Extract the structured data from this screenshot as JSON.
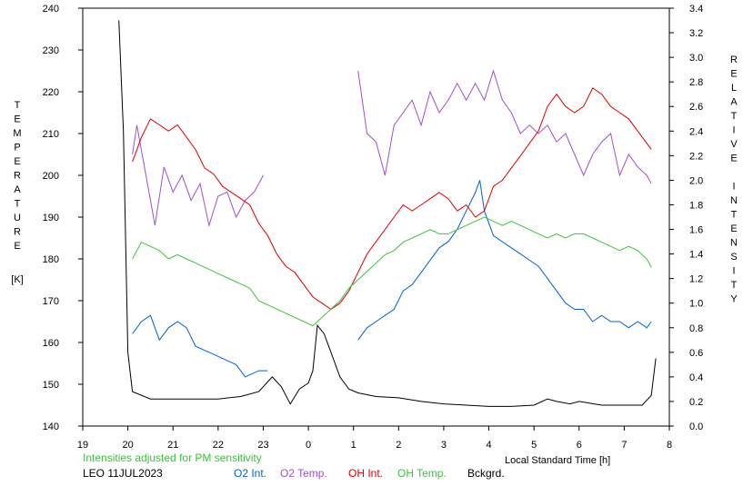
{
  "chart_data": {
    "type": "line",
    "left_axis_title": "TEMPERATURE",
    "left_axis_unit": "[K]",
    "right_axis_title": "RELATIVE INTENSITY",
    "xlabel": "Local Standard Time [h]",
    "x_ticks": [
      "19",
      "20",
      "21",
      "22",
      "23",
      "0",
      "1",
      "2",
      "3",
      "4",
      "5",
      "6",
      "7",
      "8"
    ],
    "xlim": [
      19,
      32
    ],
    "y_left_lim": [
      140,
      240
    ],
    "y_left_ticks": [
      140,
      150,
      160,
      170,
      180,
      190,
      200,
      210,
      220,
      230,
      240
    ],
    "y_right_lim": [
      0.0,
      3.4
    ],
    "y_right_ticks": [
      "0.0",
      "0.2",
      "0.4",
      "0.6",
      "0.8",
      "1.0",
      "1.2",
      "1.4",
      "1.6",
      "1.8",
      "2.0",
      "2.2",
      "2.4",
      "2.6",
      "2.8",
      "3.0",
      "3.2",
      "3.4"
    ],
    "note": "Intensities adjusted for PM sensitivity",
    "station_date": "LEO 11JUL2023",
    "grid": false,
    "series": [
      {
        "name": "O2 Int.",
        "color": "#0060d0",
        "axis": "right",
        "points": [
          [
            20.1,
            0.75
          ],
          [
            20.3,
            0.85
          ],
          [
            20.5,
            0.9
          ],
          [
            20.7,
            0.7
          ],
          [
            20.9,
            0.8
          ],
          [
            21.1,
            0.85
          ],
          [
            21.3,
            0.8
          ],
          [
            21.5,
            0.65
          ],
          [
            21.8,
            0.6
          ],
          [
            22.1,
            0.55
          ],
          [
            22.4,
            0.5
          ],
          [
            22.6,
            0.4
          ],
          [
            22.9,
            0.45
          ],
          [
            23.1,
            0.45
          ],
          [
            24.2,
            null
          ],
          [
            25.1,
            0.7
          ],
          [
            25.3,
            0.8
          ],
          [
            25.5,
            0.85
          ],
          [
            25.7,
            0.9
          ],
          [
            25.9,
            0.95
          ],
          [
            26.1,
            1.1
          ],
          [
            26.3,
            1.15
          ],
          [
            26.5,
            1.25
          ],
          [
            26.7,
            1.35
          ],
          [
            26.9,
            1.45
          ],
          [
            27.1,
            1.5
          ],
          [
            27.3,
            1.6
          ],
          [
            27.5,
            1.75
          ],
          [
            27.7,
            1.9
          ],
          [
            27.8,
            2.0
          ],
          [
            27.9,
            1.75
          ],
          [
            28.1,
            1.55
          ],
          [
            28.3,
            1.5
          ],
          [
            28.5,
            1.45
          ],
          [
            28.7,
            1.4
          ],
          [
            28.9,
            1.35
          ],
          [
            29.1,
            1.3
          ],
          [
            29.3,
            1.2
          ],
          [
            29.5,
            1.1
          ],
          [
            29.7,
            1.0
          ],
          [
            29.9,
            0.95
          ],
          [
            30.1,
            0.95
          ],
          [
            30.3,
            0.85
          ],
          [
            30.5,
            0.9
          ],
          [
            30.7,
            0.85
          ],
          [
            30.9,
            0.85
          ],
          [
            31.1,
            0.8
          ],
          [
            31.3,
            0.85
          ],
          [
            31.5,
            0.8
          ],
          [
            31.6,
            0.85
          ]
        ]
      },
      {
        "name": "O2 Temp.",
        "color": "#a050d0",
        "axis": "left",
        "points": [
          [
            20.1,
            205
          ],
          [
            20.2,
            212
          ],
          [
            20.4,
            200
          ],
          [
            20.6,
            188
          ],
          [
            20.8,
            202
          ],
          [
            21.0,
            196
          ],
          [
            21.2,
            200
          ],
          [
            21.4,
            194
          ],
          [
            21.6,
            198
          ],
          [
            21.8,
            188
          ],
          [
            22.0,
            195
          ],
          [
            22.2,
            196
          ],
          [
            22.4,
            190
          ],
          [
            22.6,
            194
          ],
          [
            22.8,
            196
          ],
          [
            23.0,
            200
          ],
          [
            24.2,
            null
          ],
          [
            25.1,
            225
          ],
          [
            25.3,
            210
          ],
          [
            25.5,
            208
          ],
          [
            25.7,
            200
          ],
          [
            25.9,
            212
          ],
          [
            26.1,
            215
          ],
          [
            26.3,
            218
          ],
          [
            26.5,
            212
          ],
          [
            26.7,
            220
          ],
          [
            26.9,
            215
          ],
          [
            27.1,
            218
          ],
          [
            27.3,
            222
          ],
          [
            27.5,
            218
          ],
          [
            27.7,
            222
          ],
          [
            27.9,
            218
          ],
          [
            28.1,
            225
          ],
          [
            28.3,
            218
          ],
          [
            28.5,
            215
          ],
          [
            28.7,
            210
          ],
          [
            28.9,
            212
          ],
          [
            29.1,
            210
          ],
          [
            29.3,
            212
          ],
          [
            29.5,
            208
          ],
          [
            29.7,
            210
          ],
          [
            29.9,
            205
          ],
          [
            30.1,
            200
          ],
          [
            30.3,
            205
          ],
          [
            30.5,
            208
          ],
          [
            30.7,
            210
          ],
          [
            30.9,
            200
          ],
          [
            31.1,
            205
          ],
          [
            31.3,
            202
          ],
          [
            31.5,
            200
          ],
          [
            31.6,
            198
          ]
        ]
      },
      {
        "name": "OH Int.",
        "color": "#e00000",
        "axis": "right",
        "points": [
          [
            20.1,
            2.15
          ],
          [
            20.3,
            2.35
          ],
          [
            20.5,
            2.5
          ],
          [
            20.7,
            2.45
          ],
          [
            20.9,
            2.4
          ],
          [
            21.1,
            2.45
          ],
          [
            21.3,
            2.35
          ],
          [
            21.5,
            2.25
          ],
          [
            21.7,
            2.1
          ],
          [
            21.9,
            2.05
          ],
          [
            22.1,
            1.95
          ],
          [
            22.3,
            1.9
          ],
          [
            22.5,
            1.85
          ],
          [
            22.7,
            1.8
          ],
          [
            22.9,
            1.65
          ],
          [
            23.1,
            1.55
          ],
          [
            23.3,
            1.4
          ],
          [
            23.5,
            1.3
          ],
          [
            23.7,
            1.25
          ],
          [
            23.9,
            1.15
          ],
          [
            24.1,
            1.05
          ],
          [
            24.3,
            1.0
          ],
          [
            24.5,
            0.95
          ],
          [
            24.7,
            1.0
          ],
          [
            24.9,
            1.1
          ],
          [
            25.1,
            1.25
          ],
          [
            25.3,
            1.4
          ],
          [
            25.5,
            1.5
          ],
          [
            25.7,
            1.6
          ],
          [
            25.9,
            1.7
          ],
          [
            26.1,
            1.8
          ],
          [
            26.3,
            1.75
          ],
          [
            26.5,
            1.8
          ],
          [
            26.7,
            1.85
          ],
          [
            26.9,
            1.9
          ],
          [
            27.1,
            1.85
          ],
          [
            27.3,
            1.75
          ],
          [
            27.5,
            1.8
          ],
          [
            27.7,
            1.7
          ],
          [
            27.9,
            1.75
          ],
          [
            28.1,
            1.95
          ],
          [
            28.3,
            2.0
          ],
          [
            28.5,
            2.1
          ],
          [
            28.7,
            2.2
          ],
          [
            28.9,
            2.3
          ],
          [
            29.1,
            2.4
          ],
          [
            29.3,
            2.6
          ],
          [
            29.5,
            2.7
          ],
          [
            29.7,
            2.6
          ],
          [
            29.9,
            2.55
          ],
          [
            30.1,
            2.6
          ],
          [
            30.3,
            2.75
          ],
          [
            30.5,
            2.7
          ],
          [
            30.7,
            2.6
          ],
          [
            30.9,
            2.55
          ],
          [
            31.1,
            2.5
          ],
          [
            31.3,
            2.4
          ],
          [
            31.5,
            2.3
          ],
          [
            31.6,
            2.25
          ]
        ]
      },
      {
        "name": "OH Temp.",
        "color": "#40c040",
        "axis": "left",
        "points": [
          [
            20.1,
            180
          ],
          [
            20.3,
            184
          ],
          [
            20.5,
            183
          ],
          [
            20.7,
            182
          ],
          [
            20.9,
            180
          ],
          [
            21.1,
            181
          ],
          [
            21.3,
            180
          ],
          [
            21.5,
            179
          ],
          [
            21.7,
            178
          ],
          [
            21.9,
            177
          ],
          [
            22.1,
            176
          ],
          [
            22.3,
            175
          ],
          [
            22.5,
            174
          ],
          [
            22.7,
            173
          ],
          [
            22.9,
            170
          ],
          [
            23.1,
            169
          ],
          [
            23.3,
            168
          ],
          [
            23.5,
            167
          ],
          [
            23.7,
            166
          ],
          [
            23.9,
            165
          ],
          [
            24.1,
            164
          ],
          [
            24.3,
            166
          ],
          [
            24.5,
            168
          ],
          [
            24.7,
            170
          ],
          [
            24.9,
            173
          ],
          [
            25.1,
            175
          ],
          [
            25.3,
            177
          ],
          [
            25.5,
            179
          ],
          [
            25.7,
            181
          ],
          [
            25.9,
            182
          ],
          [
            26.1,
            184
          ],
          [
            26.3,
            185
          ],
          [
            26.5,
            186
          ],
          [
            26.7,
            187
          ],
          [
            26.9,
            186
          ],
          [
            27.1,
            186
          ],
          [
            27.3,
            187
          ],
          [
            27.5,
            188
          ],
          [
            27.7,
            189
          ],
          [
            27.9,
            190
          ],
          [
            28.1,
            189
          ],
          [
            28.3,
            188
          ],
          [
            28.5,
            189
          ],
          [
            28.7,
            188
          ],
          [
            28.9,
            187
          ],
          [
            29.1,
            186
          ],
          [
            29.3,
            185
          ],
          [
            29.5,
            186
          ],
          [
            29.7,
            185
          ],
          [
            29.9,
            186
          ],
          [
            30.1,
            186
          ],
          [
            30.3,
            185
          ],
          [
            30.5,
            184
          ],
          [
            30.7,
            183
          ],
          [
            30.9,
            182
          ],
          [
            31.1,
            183
          ],
          [
            31.3,
            182
          ],
          [
            31.5,
            180
          ],
          [
            31.6,
            178
          ]
        ]
      },
      {
        "name": "Bckgrd.",
        "color": "#000000",
        "axis": "right",
        "points": [
          [
            19.8,
            3.3
          ],
          [
            19.9,
            2.4
          ],
          [
            20.0,
            0.6
          ],
          [
            20.1,
            0.28
          ],
          [
            20.5,
            0.22
          ],
          [
            21.0,
            0.22
          ],
          [
            21.5,
            0.22
          ],
          [
            22.0,
            0.22
          ],
          [
            22.5,
            0.24
          ],
          [
            22.9,
            0.28
          ],
          [
            23.2,
            0.4
          ],
          [
            23.4,
            0.32
          ],
          [
            23.6,
            0.18
          ],
          [
            23.8,
            0.3
          ],
          [
            24.0,
            0.35
          ],
          [
            24.1,
            0.45
          ],
          [
            24.2,
            0.82
          ],
          [
            24.35,
            0.75
          ],
          [
            24.5,
            0.6
          ],
          [
            24.7,
            0.4
          ],
          [
            24.9,
            0.3
          ],
          [
            25.1,
            0.27
          ],
          [
            25.5,
            0.24
          ],
          [
            26.0,
            0.23
          ],
          [
            26.5,
            0.2
          ],
          [
            27.0,
            0.18
          ],
          [
            27.5,
            0.17
          ],
          [
            28.0,
            0.16
          ],
          [
            28.5,
            0.16
          ],
          [
            29.0,
            0.17
          ],
          [
            29.3,
            0.22
          ],
          [
            29.5,
            0.2
          ],
          [
            29.8,
            0.18
          ],
          [
            30.0,
            0.2
          ],
          [
            30.5,
            0.17
          ],
          [
            31.0,
            0.17
          ],
          [
            31.4,
            0.17
          ],
          [
            31.6,
            0.25
          ],
          [
            31.7,
            0.55
          ]
        ]
      }
    ]
  }
}
